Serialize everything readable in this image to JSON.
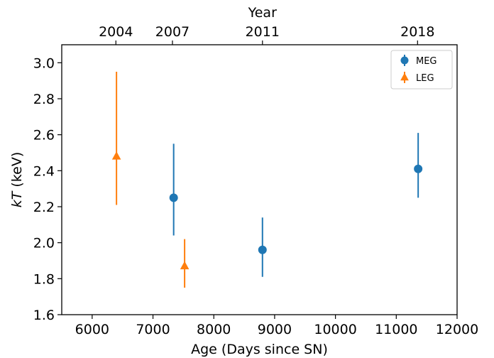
{
  "chart_data": {
    "type": "scatter",
    "xlabel": "Age (Days since SN)",
    "ylabel_italic": "kT",
    "ylabel_rest": " (keV)",
    "top_axis_label": "Year",
    "xlim": [
      5500,
      12000
    ],
    "ylim": [
      1.6,
      3.1
    ],
    "xticks": [
      6000,
      7000,
      8000,
      9000,
      10000,
      11000,
      12000
    ],
    "yticks": [
      "1.6",
      "1.8",
      "2.0",
      "2.2",
      "2.4",
      "2.6",
      "2.8",
      "3.0"
    ],
    "top_ticks": [
      {
        "label": "2004",
        "x": 6390
      },
      {
        "label": "2007",
        "x": 7320
      },
      {
        "label": "2011",
        "x": 8800
      },
      {
        "label": "2018",
        "x": 11350
      }
    ],
    "legend_position": "top-right",
    "series": [
      {
        "name": "MEG",
        "marker": "circle",
        "color": "#1f77b4",
        "points": [
          {
            "x": 7340,
            "y": 2.25,
            "y_low": 2.04,
            "y_high": 2.55
          },
          {
            "x": 8800,
            "y": 1.96,
            "y_low": 1.81,
            "y_high": 2.14
          },
          {
            "x": 11360,
            "y": 2.41,
            "y_low": 2.25,
            "y_high": 2.61
          }
        ]
      },
      {
        "name": "LEG",
        "marker": "triangle",
        "color": "#ff7f0e",
        "points": [
          {
            "x": 6400,
            "y": 2.48,
            "y_low": 2.21,
            "y_high": 2.95
          },
          {
            "x": 7520,
            "y": 1.87,
            "y_low": 1.75,
            "y_high": 2.02
          }
        ]
      }
    ]
  }
}
